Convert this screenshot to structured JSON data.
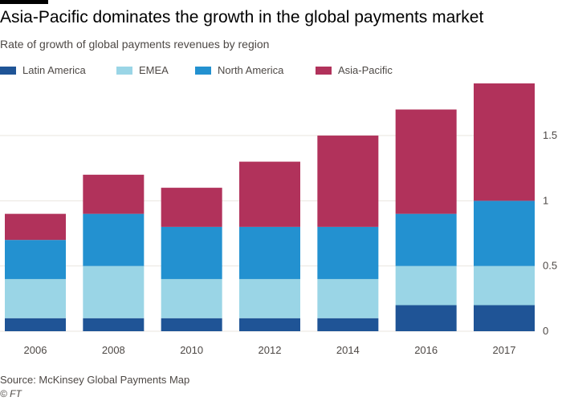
{
  "title": "Asia-Pacific dominates the growth in the global payments market",
  "subtitle": "Rate of growth of global payments revenues by region",
  "source": "Source: McKinsey Global Payments Map",
  "credit": "© FT",
  "chart_data": {
    "type": "bar",
    "stacked": true,
    "categories": [
      "2006",
      "2008",
      "2010",
      "2012",
      "2014",
      "2016",
      "2017"
    ],
    "series": [
      {
        "name": "Latin America",
        "color": "#1f5496",
        "values": [
          0.1,
          0.1,
          0.1,
          0.1,
          0.1,
          0.2,
          0.2
        ]
      },
      {
        "name": "EMEA",
        "color": "#9ad5e6",
        "values": [
          0.3,
          0.4,
          0.3,
          0.3,
          0.3,
          0.3,
          0.3
        ]
      },
      {
        "name": "North America",
        "color": "#2391d0",
        "values": [
          0.3,
          0.4,
          0.4,
          0.4,
          0.4,
          0.4,
          0.5
        ]
      },
      {
        "name": "Asia-Pacific",
        "color": "#b1325b",
        "values": [
          0.2,
          0.3,
          0.3,
          0.5,
          0.7,
          0.8,
          0.9
        ]
      }
    ],
    "ylim": [
      0,
      1.9
    ],
    "yticks": [
      0,
      0.5,
      1,
      1.5
    ],
    "ytick_labels": [
      "0",
      "0.5",
      "1",
      "1.5"
    ],
    "y_axis_position": "right",
    "grid": true,
    "legend_position": "top",
    "xlabel": "",
    "ylabel": ""
  }
}
